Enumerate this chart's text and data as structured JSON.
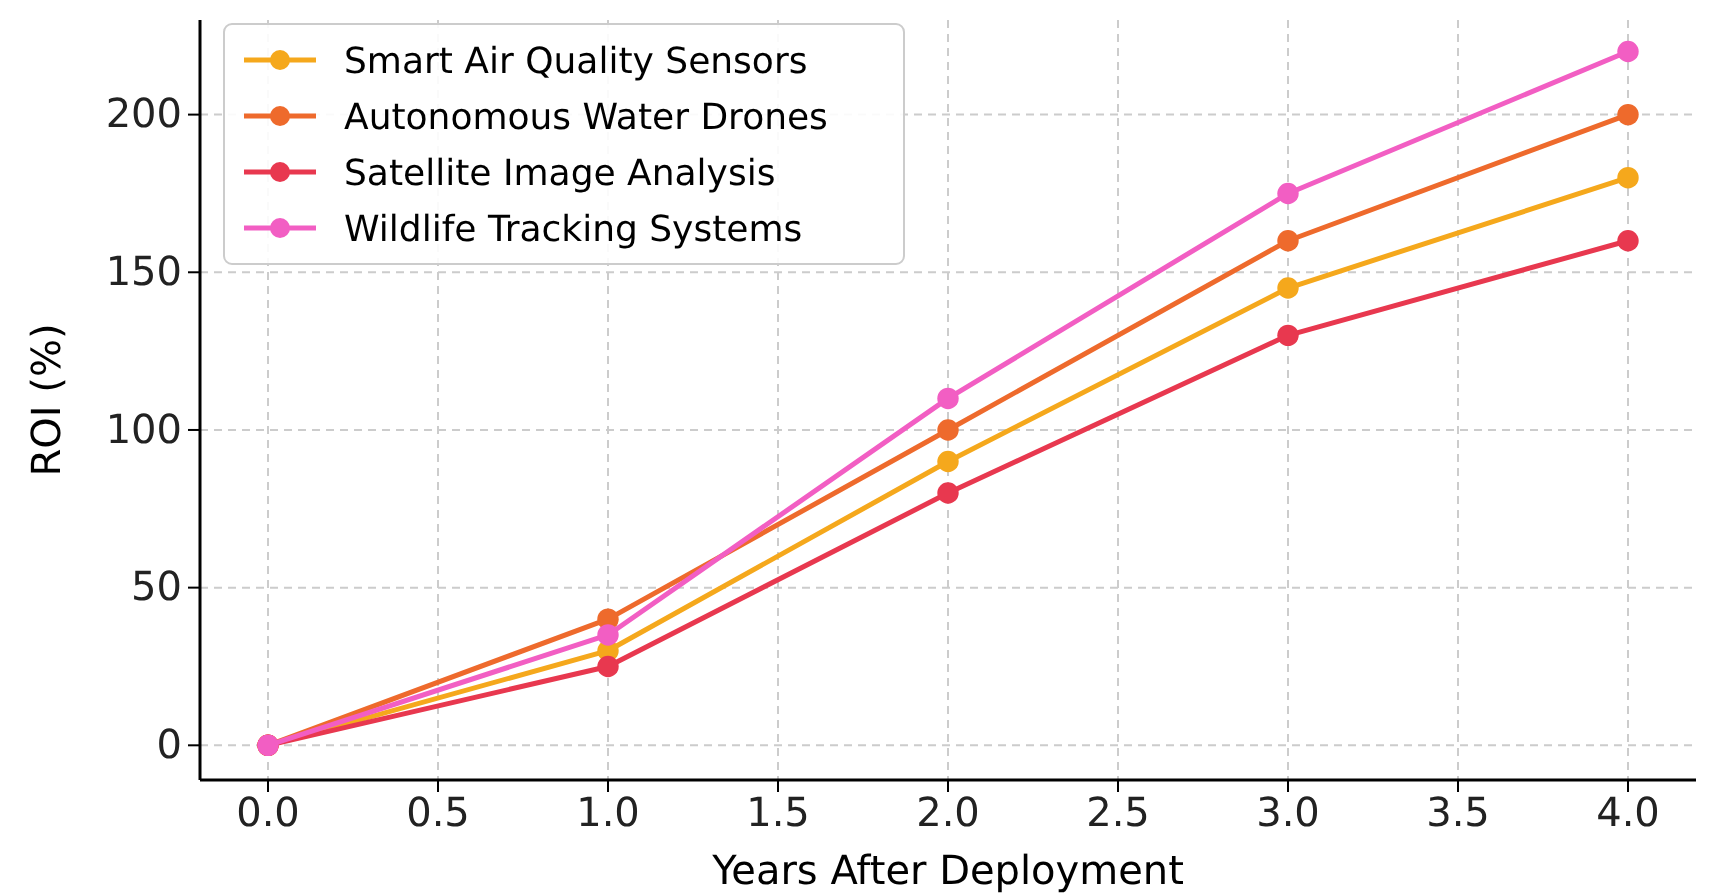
{
  "chart_data": {
    "type": "line",
    "xlabel": "Years After Deployment",
    "ylabel": "ROI (%)",
    "x": [
      0,
      1,
      2,
      3,
      4
    ],
    "series": [
      {
        "name": "Smart Air Quality Sensors",
        "color": "#f5a81c",
        "values": [
          0,
          30,
          90,
          145,
          180
        ]
      },
      {
        "name": "Autonomous Water Drones",
        "color": "#ee6a2c",
        "values": [
          0,
          40,
          100,
          160,
          200
        ]
      },
      {
        "name": "Satellite Image Analysis",
        "color": "#e8384f",
        "values": [
          0,
          25,
          80,
          130,
          160
        ]
      },
      {
        "name": "Wildlife Tracking Systems",
        "color": "#f25ec3",
        "values": [
          0,
          35,
          110,
          175,
          220
        ]
      }
    ],
    "xlim": [
      -0.2,
      4.2
    ],
    "ylim": [
      -11,
      230
    ],
    "xticks": [
      {
        "value": 0,
        "label": "0.0"
      },
      0.5,
      {
        "value": 1,
        "label": "1.0"
      },
      1.5,
      {
        "value": 2,
        "label": "2.0"
      },
      2.5,
      {
        "value": 3,
        "label": "3.0"
      },
      3.5,
      {
        "value": 4,
        "label": "4.0"
      }
    ],
    "yticks": [
      0,
      50,
      100,
      150,
      200
    ],
    "grid": true,
    "legend": "top left",
    "marker": "circle",
    "line_style": "solid"
  }
}
